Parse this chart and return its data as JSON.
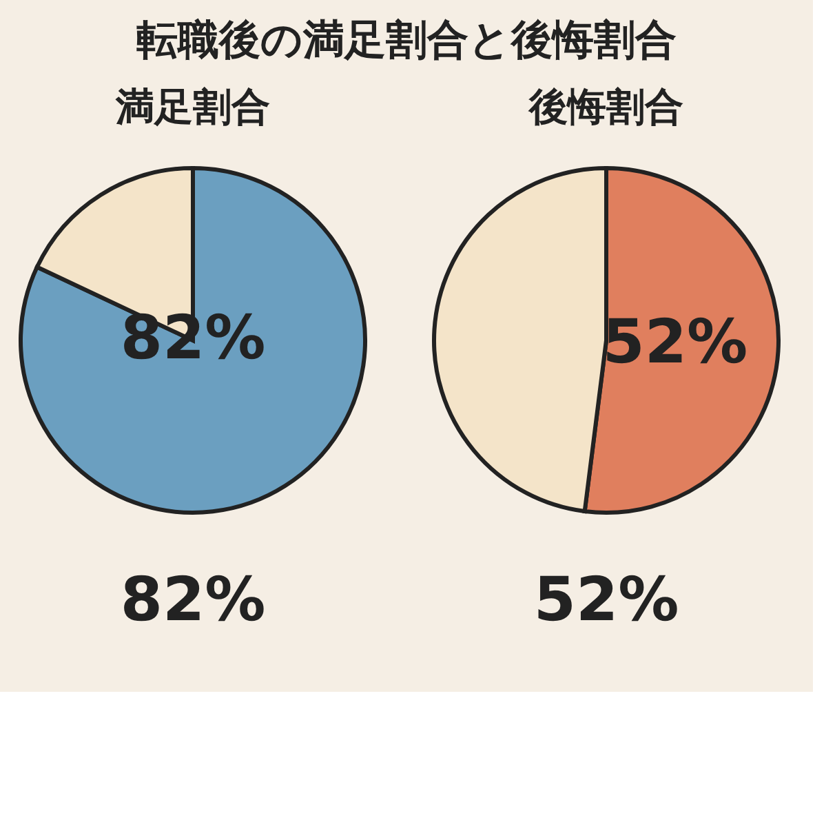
{
  "chart_data": [
    {
      "type": "other",
      "title": "転職後の満足割合と後悔割合"
    },
    {
      "type": "pie",
      "title": "満足割合",
      "categories": [
        null,
        null
      ],
      "values": [
        82,
        18
      ],
      "colors": [
        "#6b9fc0",
        "#f4e4c9"
      ],
      "value_labels": [
        "82%",
        null
      ],
      "annotations": [
        "82%"
      ]
    },
    {
      "type": "pie",
      "title": "後悔割合",
      "categories": [
        null,
        null
      ],
      "values": [
        52,
        48
      ],
      "colors": [
        "#e07f5e",
        "#f4e4c9"
      ],
      "value_labels": [
        "52%",
        null
      ],
      "annotations": [
        "52%"
      ]
    }
  ]
}
